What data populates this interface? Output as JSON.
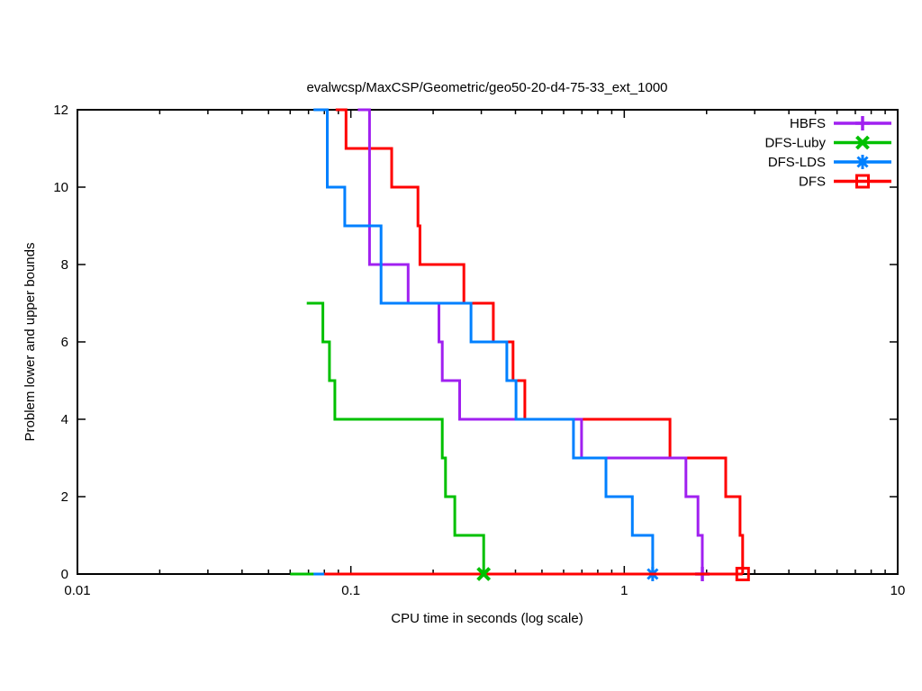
{
  "title": "evalwcsp/MaxCSP/Geometric/geo50-20-d4-75-33_ext_1000",
  "xlabel": "CPU time in seconds (log scale)",
  "ylabel": "Problem lower and upper bounds",
  "chart_data": {
    "type": "line",
    "subtype": "step-bounds",
    "x_scale": "log",
    "xlim": [
      0.01,
      10
    ],
    "ylim": [
      0,
      12
    ],
    "grid": false,
    "legend_position": "top-right-inside",
    "x_major_ticks": [
      {
        "value": 0.01,
        "label": "0.01"
      },
      {
        "value": 0.1,
        "label": "0.1"
      },
      {
        "value": 1,
        "label": "1"
      },
      {
        "value": 10,
        "label": "10"
      }
    ],
    "y_ticks": [
      {
        "value": 0,
        "label": "0"
      },
      {
        "value": 2,
        "label": "2"
      },
      {
        "value": 4,
        "label": "4"
      },
      {
        "value": 6,
        "label": "6"
      },
      {
        "value": 8,
        "label": "8"
      },
      {
        "value": 10,
        "label": "10"
      },
      {
        "value": 12,
        "label": "12"
      }
    ],
    "legend_order": [
      "HBFS",
      "DFS-Luby",
      "DFS-LDS",
      "DFS"
    ],
    "series": [
      {
        "name": "DFS",
        "color": "#ff0000",
        "marker": "square",
        "upper_bound": [
          [
            0.088,
            12
          ],
          [
            0.096,
            12
          ],
          [
            0.096,
            11
          ],
          [
            0.141,
            11
          ],
          [
            0.141,
            10
          ],
          [
            0.176,
            10
          ],
          [
            0.176,
            9
          ],
          [
            0.179,
            9
          ],
          [
            0.179,
            8
          ],
          [
            0.259,
            8
          ],
          [
            0.259,
            7
          ],
          [
            0.332,
            7
          ],
          [
            0.332,
            6
          ],
          [
            0.392,
            6
          ],
          [
            0.392,
            5
          ],
          [
            0.433,
            5
          ],
          [
            0.433,
            4
          ],
          [
            1.47,
            4
          ],
          [
            1.47,
            3
          ],
          [
            2.35,
            3
          ],
          [
            2.35,
            2
          ],
          [
            2.65,
            2
          ],
          [
            2.65,
            1
          ],
          [
            2.71,
            1
          ],
          [
            2.71,
            0
          ]
        ],
        "lower_bound": [
          [
            0.08,
            0
          ],
          [
            2.71,
            0
          ]
        ],
        "end_point": [
          2.71,
          0
        ]
      },
      {
        "name": "HBFS",
        "color": "#a020f0",
        "marker": "plus",
        "upper_bound": [
          [
            0.106,
            12
          ],
          [
            0.117,
            12
          ],
          [
            0.117,
            8
          ],
          [
            0.162,
            8
          ],
          [
            0.162,
            7
          ],
          [
            0.21,
            7
          ],
          [
            0.21,
            6
          ],
          [
            0.216,
            6
          ],
          [
            0.216,
            5
          ],
          [
            0.25,
            5
          ],
          [
            0.25,
            4
          ],
          [
            0.698,
            4
          ],
          [
            0.698,
            3
          ],
          [
            1.68,
            3
          ],
          [
            1.68,
            2
          ],
          [
            1.86,
            2
          ],
          [
            1.86,
            1
          ],
          [
            1.93,
            1
          ],
          [
            1.93,
            0
          ]
        ],
        "lower_bound": null,
        "end_point": [
          1.93,
          0
        ]
      },
      {
        "name": "DFS-Luby",
        "color": "#00c000",
        "marker": "cross",
        "upper_bound": [
          [
            0.069,
            7
          ],
          [
            0.079,
            7
          ],
          [
            0.079,
            6
          ],
          [
            0.0835,
            6
          ],
          [
            0.0835,
            5
          ],
          [
            0.0874,
            5
          ],
          [
            0.0874,
            4
          ],
          [
            0.216,
            4
          ],
          [
            0.216,
            3
          ],
          [
            0.222,
            3
          ],
          [
            0.222,
            2
          ],
          [
            0.24,
            2
          ],
          [
            0.24,
            1
          ],
          [
            0.306,
            1
          ],
          [
            0.306,
            0
          ]
        ],
        "lower_bound": [
          [
            0.06,
            0
          ],
          [
            0.306,
            0
          ]
        ],
        "end_point": [
          0.306,
          0
        ]
      },
      {
        "name": "DFS-LDS",
        "color": "#0080ff",
        "marker": "asterisk",
        "upper_bound": [
          [
            0.073,
            12
          ],
          [
            0.082,
            12
          ],
          [
            0.082,
            10
          ],
          [
            0.095,
            10
          ],
          [
            0.095,
            9
          ],
          [
            0.129,
            9
          ],
          [
            0.129,
            7
          ],
          [
            0.275,
            7
          ],
          [
            0.275,
            6
          ],
          [
            0.372,
            6
          ],
          [
            0.372,
            5
          ],
          [
            0.402,
            5
          ],
          [
            0.402,
            4
          ],
          [
            0.652,
            4
          ],
          [
            0.652,
            3
          ],
          [
            0.857,
            3
          ],
          [
            0.857,
            2
          ],
          [
            1.07,
            2
          ],
          [
            1.07,
            1
          ],
          [
            1.27,
            1
          ],
          [
            1.27,
            0
          ]
        ],
        "lower_bound": [
          [
            0.073,
            0
          ],
          [
            1.27,
            0
          ]
        ],
        "end_point": [
          1.27,
          0
        ]
      }
    ]
  }
}
